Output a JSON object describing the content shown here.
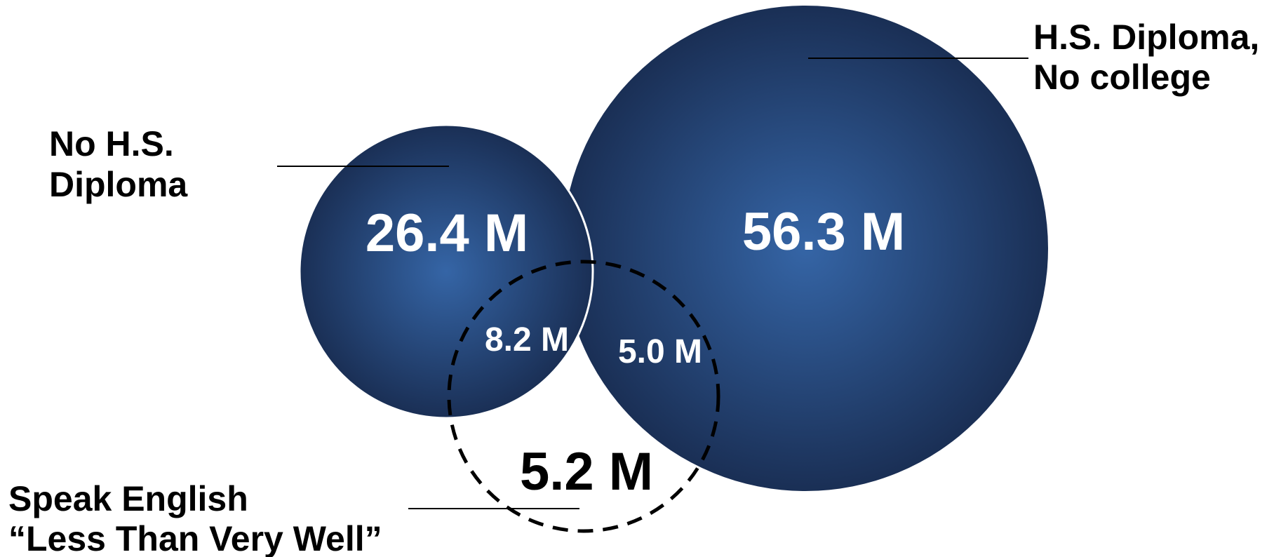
{
  "colors": {
    "circle_center": "#3565a6",
    "circle_edge": "#1a2f55",
    "text_light": "#ffffff",
    "text_dark": "#000000"
  },
  "diagram": {
    "sets": {
      "no_hs": {
        "label_lines": [
          "No H.S.",
          "Diploma"
        ],
        "value": "26.4 M"
      },
      "hs_no_college": {
        "label_lines": [
          "H.S. Diploma,",
          "No college"
        ],
        "value": "56.3 M"
      },
      "limited_english": {
        "label_lines": [
          "Speak English",
          "“Less Than Very Well”"
        ],
        "value": "5.2 M"
      }
    },
    "overlaps": {
      "no_hs_and_limited_english": "8.2 M",
      "hs_and_limited_english": "5.0 M"
    }
  }
}
